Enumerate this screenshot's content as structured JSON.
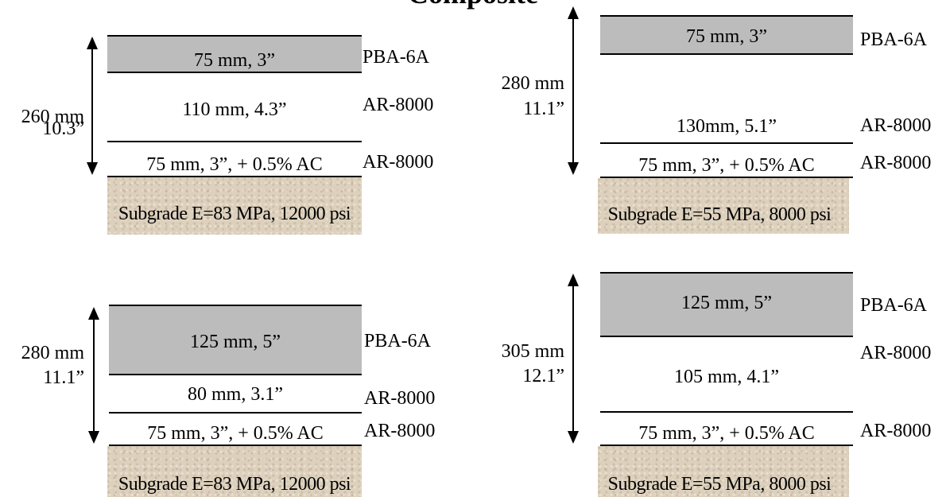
{
  "title": "Composite",
  "sections": [
    {
      "total_mm": "260 mm",
      "total_in": "10.3”",
      "layers": [
        {
          "label": "75 mm, 3”",
          "material": "PBA-6A"
        },
        {
          "label": "110 mm, 4.3”",
          "material": "AR-8000"
        },
        {
          "label": "75 mm, 3”, + 0.5% AC",
          "material": "AR-8000"
        }
      ],
      "subgrade": "Subgrade E=83 MPa, 12000 psi"
    },
    {
      "total_mm": "280 mm",
      "total_in": "11.1”",
      "layers": [
        {
          "label": "75 mm, 3”",
          "material": "PBA-6A"
        },
        {
          "label": "130mm, 5.1”",
          "material": "AR-8000"
        },
        {
          "label": "75 mm, 3”, + 0.5% AC",
          "material": "AR-8000"
        }
      ],
      "subgrade": "Subgrade E=55 MPa, 8000 psi"
    },
    {
      "total_mm": "280 mm",
      "total_in": "11.1”",
      "layers": [
        {
          "label": "125 mm, 5”",
          "material": "PBA-6A"
        },
        {
          "label": "80 mm, 3.1”",
          "material": "AR-8000"
        },
        {
          "label": "75 mm, 3”, + 0.5% AC",
          "material": "AR-8000"
        }
      ],
      "subgrade": "Subgrade E=83 MPa, 12000 psi"
    },
    {
      "total_mm": "305 mm",
      "total_in": "12.1”",
      "layers": [
        {
          "label": "125 mm, 5”",
          "material": "PBA-6A"
        },
        {
          "label": "105 mm, 4.1”",
          "material": "AR-8000"
        },
        {
          "label": "75 mm, 3”, + 0.5% AC",
          "material": "AR-8000"
        }
      ],
      "subgrade": "Subgrade E=55 MPa, 8000 psi"
    }
  ]
}
